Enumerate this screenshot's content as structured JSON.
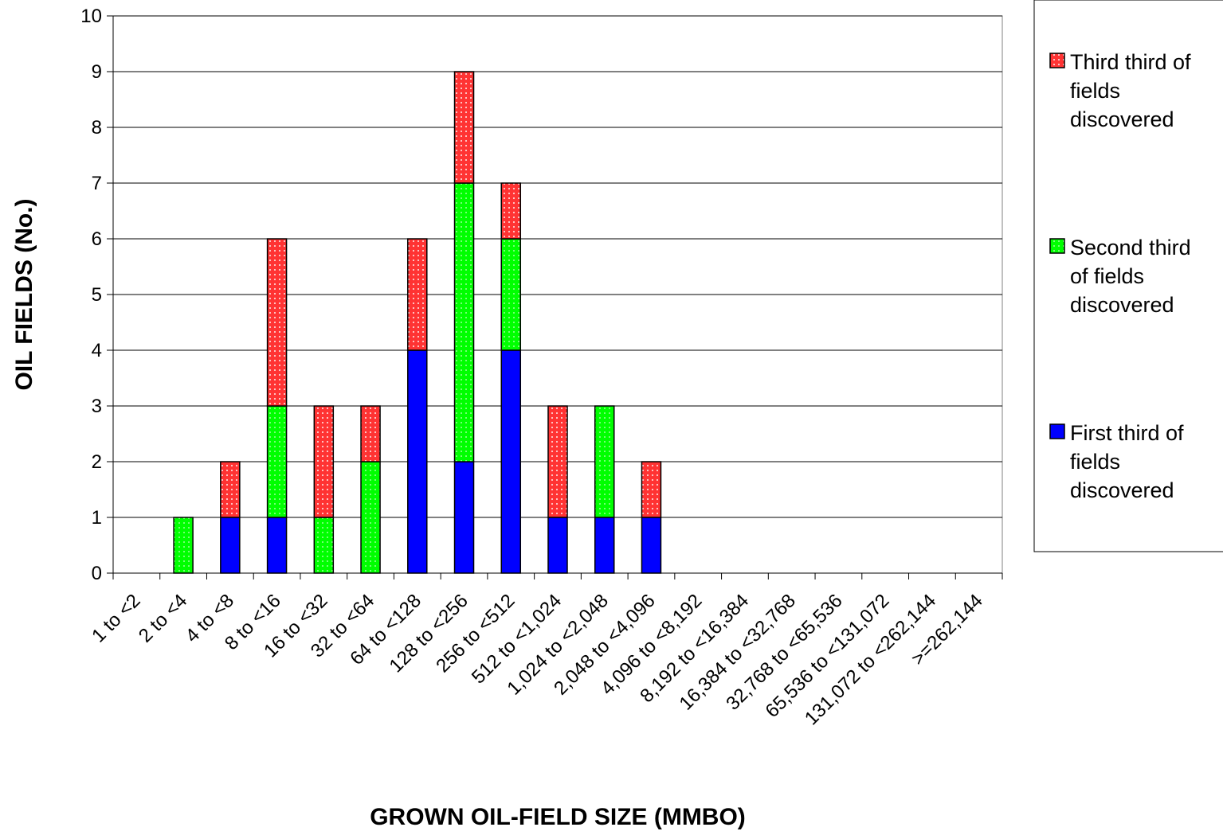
{
  "chart_data": {
    "type": "bar",
    "stacked": true,
    "title": "",
    "xlabel": "GROWN OIL-FIELD SIZE (MMBO)",
    "ylabel": "OIL FIELDS (No.)",
    "ylim": [
      0,
      10
    ],
    "yticks": [
      "0",
      "1",
      "2",
      "3",
      "4",
      "5",
      "6",
      "7",
      "8",
      "9",
      "10"
    ],
    "grid": true,
    "legend_position": "right",
    "categories": [
      "1 to <2",
      "2 to <4",
      "4 to <8",
      "8 to <16",
      "16 to <32",
      "32 to <64",
      "64 to <128",
      "128 to <256",
      "256 to <512",
      "512 to <1,024",
      "1,024 to <2,048",
      "2,048 to <4,096",
      "4,096 to <8,192",
      "8,192 to <16,384",
      "16,384 to <32,768",
      "32,768 to <65,536",
      "65,536 to <131,072",
      "131,072 to <262,144",
      ">=262,144"
    ],
    "series": [
      {
        "name": "First third of fields discovered",
        "color": "#0000ff",
        "values": [
          0,
          0,
          1,
          1,
          0,
          0,
          4,
          2,
          4,
          1,
          1,
          1,
          0,
          0,
          0,
          0,
          0,
          0,
          0
        ]
      },
      {
        "name": "Second third of fields discovered",
        "color": "#00ff00",
        "values": [
          0,
          1,
          0,
          2,
          1,
          2,
          0,
          5,
          2,
          0,
          2,
          0,
          0,
          0,
          0,
          0,
          0,
          0,
          0
        ]
      },
      {
        "name": "Third third of fields discovered",
        "color": "#ff3333",
        "values": [
          0,
          0,
          1,
          3,
          2,
          1,
          2,
          2,
          1,
          2,
          0,
          1,
          0,
          0,
          0,
          0,
          0,
          0,
          0
        ]
      }
    ],
    "legend": {
      "items": [
        {
          "series_index": 2,
          "lines": [
            "Third third of",
            "fields",
            "discovered"
          ]
        },
        {
          "series_index": 1,
          "lines": [
            "Second third",
            "of fields",
            "discovered"
          ]
        },
        {
          "series_index": 0,
          "lines": [
            "First third of",
            "fields",
            "discovered"
          ]
        }
      ]
    }
  }
}
